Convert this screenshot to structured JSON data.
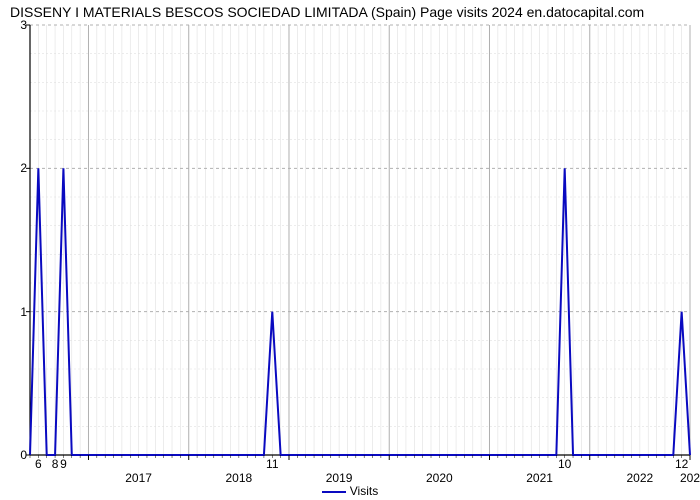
{
  "title": "DISSENY I MATERIALS BESCOS SOCIEDAD LIMITADA (Spain) Page visits 2024 en.datocapital.com",
  "chart": {
    "type": "line",
    "background_color": "#ffffff",
    "grid_major_color": "#b0b0b0",
    "grid_minor_color": "#e0e0e0",
    "line_color": "#0a0ac0",
    "line_width": 2,
    "axis_color": "#000000",
    "title_fontsize": 14,
    "tick_fontsize": 12,
    "ylim": [
      0,
      3
    ],
    "yticks": [
      0,
      1,
      2,
      3
    ],
    "x_range_months": 84,
    "x_start_label": "2017",
    "x_end_label": "202",
    "x_year_labels": [
      "2017",
      "2018",
      "2019",
      "2020",
      "2021",
      "2022",
      "202"
    ],
    "x_minor_labels": [
      {
        "month_index": -6,
        "text": "6"
      },
      {
        "month_index": -4,
        "text": "8"
      },
      {
        "month_index": -3,
        "text": "9"
      },
      {
        "month_index": 22,
        "text": "11"
      },
      {
        "month_index": 57,
        "text": "10"
      },
      {
        "month_index": 71,
        "text": "12"
      }
    ],
    "series_label": "Visits",
    "points": [
      {
        "x": -7,
        "y": 0
      },
      {
        "x": -6,
        "y": 2
      },
      {
        "x": -5,
        "y": 0
      },
      {
        "x": -4,
        "y": 0
      },
      {
        "x": -3,
        "y": 2
      },
      {
        "x": -2,
        "y": 0
      },
      {
        "x": 21,
        "y": 0
      },
      {
        "x": 22,
        "y": 1
      },
      {
        "x": 23,
        "y": 0
      },
      {
        "x": 56,
        "y": 0
      },
      {
        "x": 57,
        "y": 2
      },
      {
        "x": 58,
        "y": 0
      },
      {
        "x": 70,
        "y": 0
      },
      {
        "x": 71,
        "y": 1
      },
      {
        "x": 72,
        "y": 0
      }
    ],
    "x_data_min": -7,
    "x_data_max": 72
  },
  "legend_label": "Visits"
}
